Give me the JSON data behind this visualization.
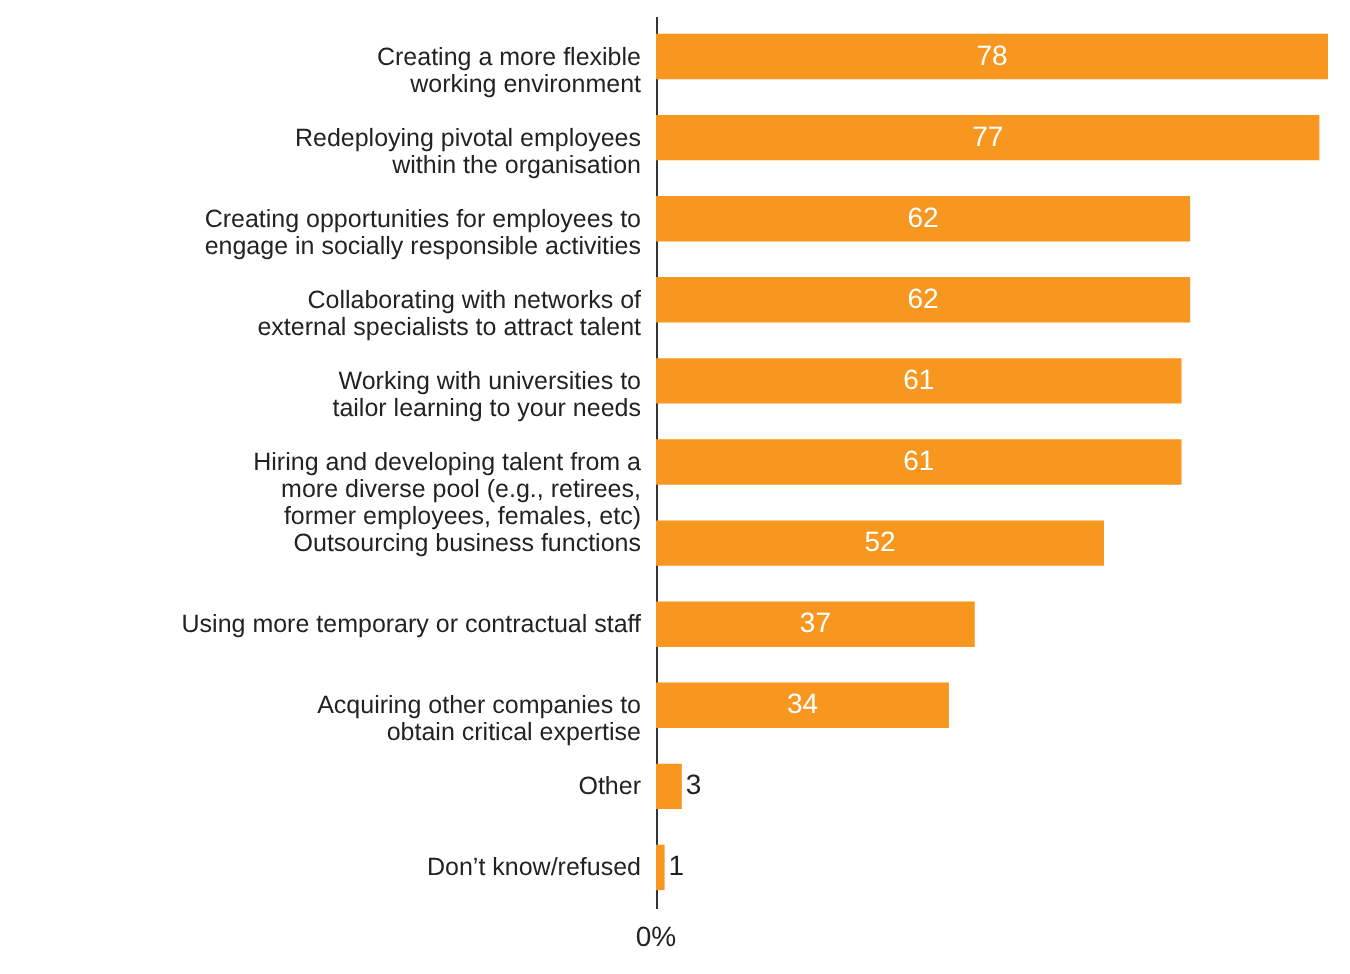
{
  "chart_data": {
    "type": "bar",
    "orientation": "horizontal",
    "categories": [
      "Creating a more flexible\nworking environment",
      "Redeploying pivotal employees\nwithin the organisation",
      "Creating opportunities for employees to\nengage in socially responsible activities",
      "Collaborating with networks of\nexternal specialists to attract talent",
      "Working with universities to\ntailor learning to your needs",
      "Hiring and developing talent from a\nmore diverse pool (e.g., retirees,\nformer employees, females, etc)",
      "Outsourcing business functions",
      "Using more temporary or contractual staff",
      "Acquiring other companies to\nobtain critical expertise",
      "Other",
      "Don’t know/refused"
    ],
    "values": [
      78,
      77,
      62,
      62,
      61,
      61,
      52,
      37,
      34,
      3,
      1
    ],
    "color": "#f7971f",
    "annotations": [
      "0%"
    ],
    "data_labels": true
  }
}
